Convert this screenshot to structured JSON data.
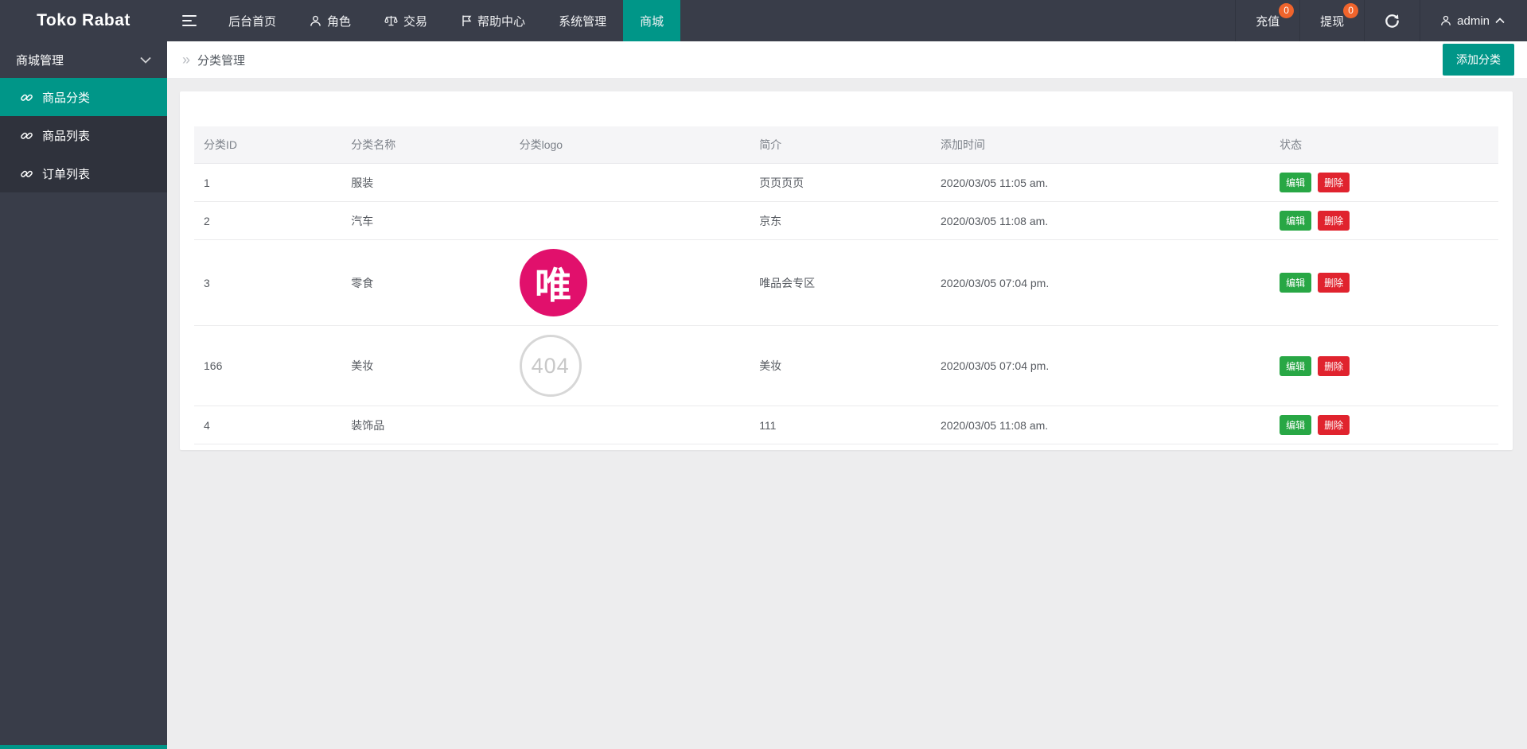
{
  "brand": "Toko Rabat",
  "navbar": {
    "items": [
      {
        "label": "后台首页"
      },
      {
        "label": "角色"
      },
      {
        "label": "交易"
      },
      {
        "label": "帮助中心"
      },
      {
        "label": "系统管理"
      },
      {
        "label": "商城",
        "active": true
      }
    ],
    "right": {
      "recharge_label": "充值",
      "recharge_badge": "0",
      "withdraw_label": "提现",
      "withdraw_badge": "0",
      "user_label": "admin"
    }
  },
  "sidebar": {
    "group_label": "商城管理",
    "items": [
      {
        "label": "商品分类",
        "active": true
      },
      {
        "label": "商品列表",
        "active": false
      },
      {
        "label": "订单列表",
        "active": false
      }
    ]
  },
  "page": {
    "breadcrumb_caret": "»",
    "breadcrumb_title": "分类管理",
    "add_button_label": "添加分类"
  },
  "table": {
    "headers": [
      "分类ID",
      "分类名称",
      "分类logo",
      "简介",
      "添加时间",
      "状态"
    ],
    "actions": {
      "edit": "编辑",
      "delete": "删除"
    },
    "rows": [
      {
        "id": "1",
        "name": "服装",
        "logo": "none",
        "logo_text": "",
        "desc": "页页页页",
        "time": "2020/03/05 11:05 am."
      },
      {
        "id": "2",
        "name": "汽车",
        "logo": "none",
        "logo_text": "",
        "desc": "京东",
        "time": "2020/03/05 11:08 am."
      },
      {
        "id": "3",
        "name": "零食",
        "logo": "vip",
        "logo_text": "唯",
        "desc": "唯品会专区",
        "time": "2020/03/05 07:04 pm."
      },
      {
        "id": "166",
        "name": "美妆",
        "logo": "404",
        "logo_text": "404",
        "desc": "美妆",
        "time": "2020/03/05 07:04 pm."
      },
      {
        "id": "4",
        "name": "装饰品",
        "logo": "none",
        "logo_text": "",
        "desc": "111",
        "time": "2020/03/05 11:08 am."
      }
    ]
  },
  "colors": {
    "accent_teal": "#009688",
    "navbar_bg": "#393d49",
    "submenu_bg": "#2f323c",
    "edit_green": "#28a745",
    "delete_red": "#e0232e",
    "badge_orange": "#f0642c",
    "vip_pink": "#e1106c"
  }
}
